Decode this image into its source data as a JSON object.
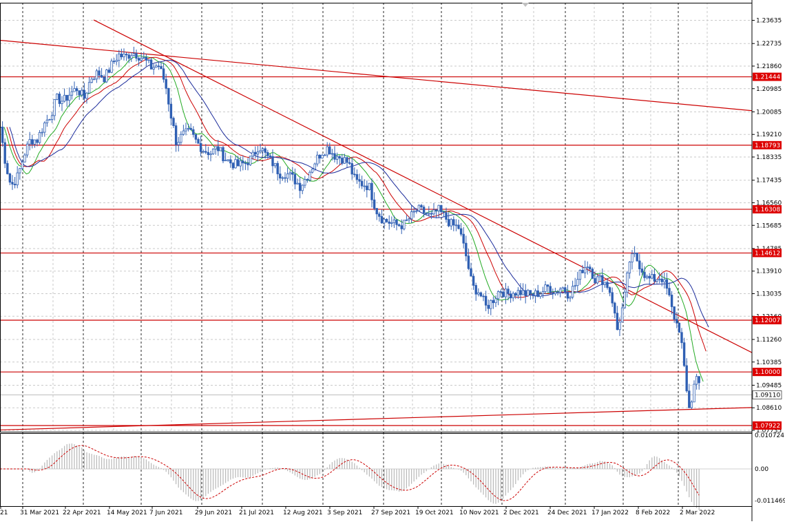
{
  "chart_data": {
    "type": "candlestick",
    "instrument_hint": "EURUSD daily",
    "grid": true,
    "colors": {
      "background": "#ffffff",
      "candles": "#2f5fb3",
      "grid": "#c9c9c9",
      "level_line": "#cc0000",
      "trend_line": "#cc0000",
      "ma_fast": "#22aa22",
      "ma_mid": "#cc0000",
      "ma_slow": "#1a2a9a",
      "histogram": "#b8b8b8",
      "signal": "#cc0000",
      "label_bg": "#dd0000",
      "price_label_bg": "#ffffff"
    },
    "price_axis": {
      "ylim": [
        1.07735,
        1.2406
      ],
      "ticks": [
        "1.23635",
        "1.22735",
        "1.21860",
        "1.20985",
        "1.20085",
        "1.19210",
        "1.18335",
        "1.17435",
        "1.16560",
        "1.15685",
        "1.14785",
        "1.13910",
        "1.13035",
        "1.12160",
        "1.11260",
        "1.10385",
        "1.09485",
        "1.08610",
        "1.07735"
      ]
    },
    "x_axis": {
      "ticks": [
        "21",
        "31 Mar 2021",
        "22 Apr 2021",
        "14 May 2021",
        "7 Jun 2021",
        "29 Jun 2021",
        "21 Jul 2021",
        "12 Aug 2021",
        "3 Sep 2021",
        "27 Sep 2021",
        "19 Oct 2021",
        "10 Nov 2021",
        "2 Dec 2021",
        "24 Dec 2021",
        "17 Jan 2022",
        "8 Feb 2022",
        "2 Mar 2022"
      ]
    },
    "levels": [
      "1.21444",
      "1.18793",
      "1.16308",
      "1.14612",
      "1.12007",
      "1.10000",
      "1.07922"
    ],
    "current_price": "1.09110",
    "close_path": [
      [
        0,
        1.195
      ],
      [
        8,
        1.181
      ],
      [
        16,
        1.172
      ],
      [
        26,
        1.176
      ],
      [
        36,
        1.185
      ],
      [
        44,
        1.19
      ],
      [
        54,
        1.19
      ],
      [
        64,
        1.196
      ],
      [
        74,
        1.2
      ],
      [
        82,
        1.206
      ],
      [
        92,
        1.205
      ],
      [
        102,
        1.208
      ],
      [
        112,
        1.21
      ],
      [
        122,
        1.206
      ],
      [
        132,
        1.214
      ],
      [
        142,
        1.216
      ],
      [
        152,
        1.214
      ],
      [
        162,
        1.219
      ],
      [
        172,
        1.223
      ],
      [
        182,
        1.222
      ],
      [
        192,
        1.224
      ],
      [
        200,
        1.223
      ],
      [
        210,
        1.221
      ],
      [
        220,
        1.218
      ],
      [
        230,
        1.219
      ],
      [
        240,
        1.212
      ],
      [
        248,
        1.2
      ],
      [
        256,
        1.189
      ],
      [
        266,
        1.192
      ],
      [
        276,
        1.193
      ],
      [
        286,
        1.189
      ],
      [
        296,
        1.186
      ],
      [
        306,
        1.185
      ],
      [
        316,
        1.187
      ],
      [
        326,
        1.183
      ],
      [
        336,
        1.181
      ],
      [
        346,
        1.18
      ],
      [
        356,
        1.181
      ],
      [
        366,
        1.183
      ],
      [
        376,
        1.188
      ],
      [
        386,
        1.184
      ],
      [
        396,
        1.181
      ],
      [
        406,
        1.177
      ],
      [
        416,
        1.177
      ],
      [
        426,
        1.175
      ],
      [
        436,
        1.172
      ],
      [
        446,
        1.176
      ],
      [
        456,
        1.181
      ],
      [
        466,
        1.185
      ],
      [
        476,
        1.187
      ],
      [
        486,
        1.184
      ],
      [
        496,
        1.183
      ],
      [
        506,
        1.181
      ],
      [
        516,
        1.174
      ],
      [
        526,
        1.173
      ],
      [
        536,
        1.172
      ],
      [
        546,
        1.163
      ],
      [
        556,
        1.159
      ],
      [
        566,
        1.158
      ],
      [
        576,
        1.157
      ],
      [
        586,
        1.157
      ],
      [
        596,
        1.16
      ],
      [
        606,
        1.163
      ],
      [
        616,
        1.162
      ],
      [
        626,
        1.16
      ],
      [
        636,
        1.163
      ],
      [
        646,
        1.16
      ],
      [
        656,
        1.157
      ],
      [
        666,
        1.156
      ],
      [
        676,
        1.146
      ],
      [
        686,
        1.133
      ],
      [
        696,
        1.131
      ],
      [
        706,
        1.125
      ],
      [
        716,
        1.128
      ],
      [
        726,
        1.132
      ],
      [
        736,
        1.13
      ],
      [
        746,
        1.131
      ],
      [
        756,
        1.131
      ],
      [
        766,
        1.13
      ],
      [
        776,
        1.13
      ],
      [
        786,
        1.131
      ],
      [
        796,
        1.133
      ],
      [
        806,
        1.131
      ],
      [
        816,
        1.133
      ],
      [
        826,
        1.13
      ],
      [
        836,
        1.134
      ],
      [
        846,
        1.14
      ],
      [
        854,
        1.142
      ],
      [
        864,
        1.136
      ],
      [
        874,
        1.136
      ],
      [
        884,
        1.133
      ],
      [
        890,
        1.127
      ],
      [
        896,
        1.116
      ],
      [
        906,
        1.127
      ],
      [
        914,
        1.143
      ],
      [
        922,
        1.145
      ],
      [
        930,
        1.141
      ],
      [
        940,
        1.136
      ],
      [
        950,
        1.136
      ],
      [
        960,
        1.137
      ],
      [
        970,
        1.131
      ],
      [
        976,
        1.124
      ],
      [
        982,
        1.119
      ],
      [
        988,
        1.116
      ],
      [
        996,
        1.094
      ],
      [
        1002,
        1.085
      ],
      [
        1008,
        1.095
      ],
      [
        1014,
        1.1
      ],
      [
        1018,
        1.091
      ]
    ],
    "trend_lines": [
      [
        [
          0,
          1.2286
        ],
        [
          1092,
          1.2013
        ]
      ],
      [
        [
          136,
          1.2365
        ],
        [
          1092,
          1.1075
        ]
      ],
      [
        [
          0,
          1.0775
        ],
        [
          1092,
          1.0862
        ]
      ]
    ],
    "histogram_range": [
      "0.010724",
      "0.00",
      "-0.011469"
    ]
  }
}
